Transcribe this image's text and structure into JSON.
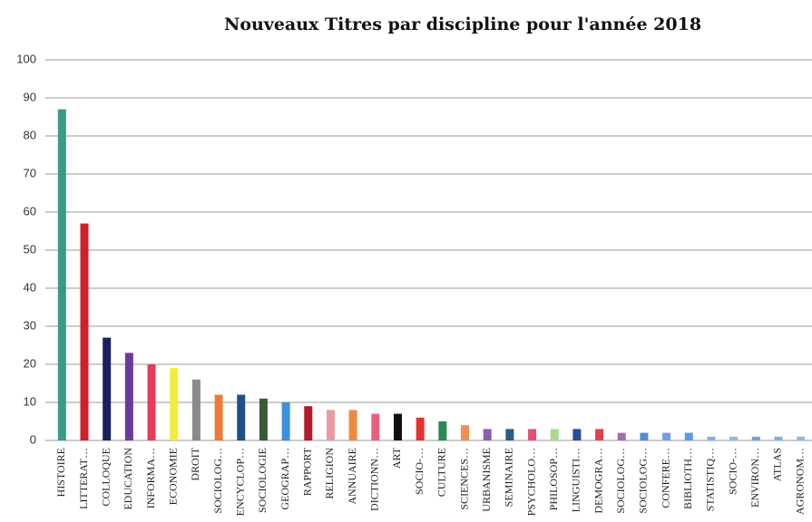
{
  "chart_data": {
    "type": "bar",
    "title": "Nouveaux Titres par discipline  pour l'année 2018",
    "categories": [
      "HISTOIRE",
      "LITTERAT…",
      "COLLOQUE",
      "EDUCATION",
      "INFORMA…",
      "ECONOMIE",
      "DROIT",
      "SOCIOLOG…",
      "ENCYCLOP…",
      "SOCIOLOGIE",
      "GEOGRAP…",
      "RAPPORT",
      "RELIGION",
      "ANNUAIRE",
      "DICTIONN…",
      "ART",
      "SOCIO-…",
      "CULTURE",
      "SCIENCES…",
      "URBANISME",
      "SEMINAIRE",
      "PSYCHOLO…",
      "PHILOSOP…",
      "LINGUISTI…",
      "DEMOGRA…",
      "SOCIOLOG…",
      "SOCIOLOG…",
      "CONFERE…",
      "BIBLIOTH…",
      "STATISTIQ…",
      "SOCIO-…",
      "ENVIRON…",
      "ATLAS",
      "AGRONOM…"
    ],
    "values": [
      87,
      57,
      27,
      23,
      20,
      19,
      16,
      12,
      12,
      11,
      10,
      9,
      8,
      8,
      7,
      7,
      6,
      5,
      4,
      3,
      3,
      3,
      3,
      3,
      3,
      2,
      2,
      2,
      2,
      1,
      1,
      1,
      1,
      1
    ],
    "colors": [
      "#3a9a88",
      "#d0202a",
      "#1a1f5e",
      "#6a3b9c",
      "#e83a5c",
      "#f4ec3a",
      "#8a8a8a",
      "#ee7a3a",
      "#1f4f86",
      "#3a5a3a",
      "#3a90e0",
      "#b01c2a",
      "#e89aa0",
      "#ee8a40",
      "#e86080",
      "#111111",
      "#e83030",
      "#2a8a50",
      "#f09050",
      "#8a60b0",
      "#2a5a8a",
      "#e85070",
      "#a8d890",
      "#2a4a9a",
      "#e04050",
      "#a070b0",
      "#5090d0",
      "#70a0e0",
      "#5a9ae0",
      "#80b0e8",
      "#90b8e8",
      "#70a0e0",
      "#80b0e8",
      "#8ab8e8"
    ],
    "ylim": [
      0,
      100
    ],
    "yticks": [
      0,
      10,
      20,
      30,
      40,
      50,
      60,
      70,
      80,
      90,
      100
    ],
    "grid": true
  }
}
